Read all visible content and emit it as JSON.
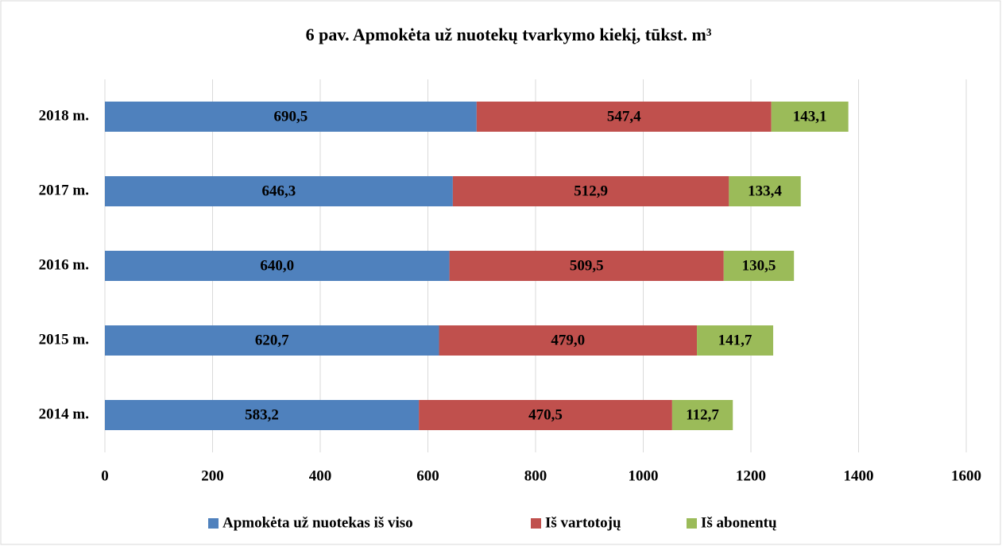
{
  "chart_data": {
    "type": "bar",
    "orientation": "horizontal",
    "stacked": true,
    "title": "6 pav. Apmokėta už nuotekų tvarkymo kiekį, tūkst. m³",
    "categories": [
      "2014 m.",
      "2015 m.",
      "2016 m.",
      "2017 m.",
      "2018 m."
    ],
    "series": [
      {
        "name": "Apmokėta už nuotekas iš viso",
        "color": "#4f81bd",
        "values": [
          583.2,
          620.7,
          640.0,
          646.3,
          690.5
        ],
        "value_labels": [
          "583,2",
          "620,7",
          "640,0",
          "646,3",
          "690,5"
        ]
      },
      {
        "name": "Iš vartotojų",
        "color": "#c0504d",
        "values": [
          470.5,
          479.0,
          509.5,
          512.9,
          547.4
        ],
        "value_labels": [
          "470,5",
          "479,0",
          "509,5",
          "512,9",
          "547,4"
        ]
      },
      {
        "name": "Iš abonentų",
        "color": "#9bbb59",
        "values": [
          112.7,
          141.7,
          130.5,
          133.4,
          143.1
        ],
        "value_labels": [
          "112,7",
          "141,7",
          "130,5",
          "133,4",
          "143,1"
        ]
      }
    ],
    "xlim": [
      0,
      1600
    ],
    "xticks": [
      0,
      200,
      400,
      600,
      800,
      1000,
      1200,
      1400,
      1600
    ],
    "grid": true,
    "legend": "bottom"
  }
}
